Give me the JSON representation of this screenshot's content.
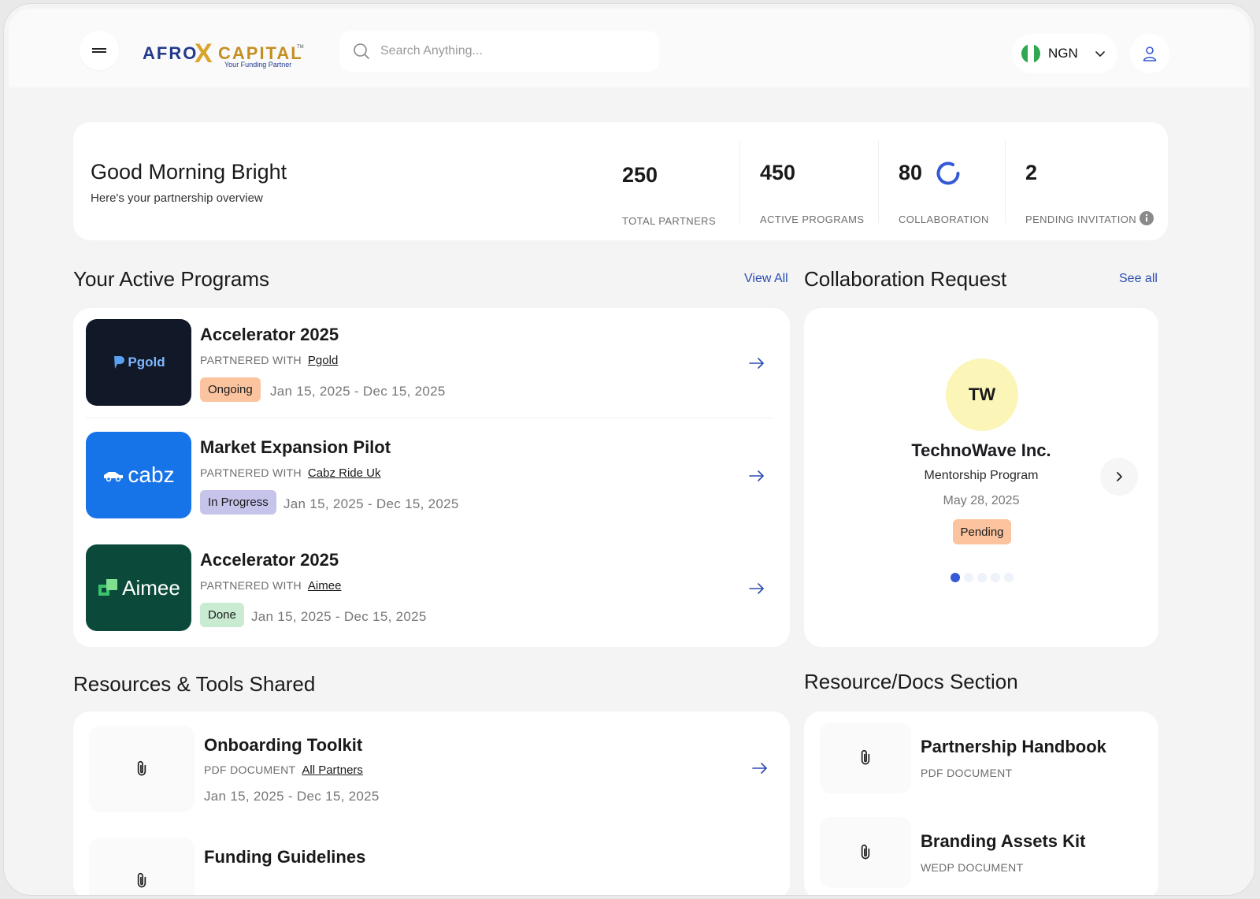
{
  "header": {
    "logo_text_1": "AFRO",
    "logo_text_x": "X",
    "logo_text_2": "CAPITAL",
    "logo_tm": "TM",
    "logo_tagline": "Your Funding Partner",
    "search_placeholder": "Search Anything...",
    "currency": "NGN"
  },
  "overview": {
    "greeting": "Good Morning Bright",
    "subtitle": "Here's your partnership overview",
    "stats": [
      {
        "value": "250",
        "label": "TOTAL PARTNERS"
      },
      {
        "value": "450",
        "label": "ACTIVE PROGRAMS"
      },
      {
        "value": "80",
        "label": "COLLABORATION"
      },
      {
        "value": "2",
        "label": "PENDING INVITATION"
      }
    ]
  },
  "programs": {
    "title": "Your Active Programs",
    "view_all": "View All",
    "partnered_label": "PARTNERED WITH",
    "items": [
      {
        "title": "Accelerator 2025",
        "partner": "Pgold",
        "logo_text": "Pgold",
        "status": "Ongoing",
        "dates": "Jan 15, 2025 - Dec 15, 2025"
      },
      {
        "title": "Market Expansion Pilot",
        "partner": "Cabz Ride Uk",
        "logo_text": "cabz",
        "status": "In Progress",
        "dates": "Jan 15, 2025 - Dec 15, 2025"
      },
      {
        "title": "Accelerator 2025",
        "partner": "Aimee",
        "logo_text": "Aimee",
        "status": "Done",
        "dates": "Jan 15, 2025 - Dec 15, 2025"
      }
    ],
    "colors": {
      "ongoing": "#fbc49e",
      "in_progress": "#c6c4ea",
      "done": "#c9ebd2"
    }
  },
  "collaboration": {
    "title": "Collaboration Request",
    "see_all": "See all",
    "initials": "TW",
    "company": "TechnoWave Inc.",
    "program": "Mentorship Program",
    "date": "May 28, 2025",
    "status": "Pending",
    "carousel_count": 5,
    "carousel_active": 1
  },
  "resources": {
    "title": "Resources & Tools Shared",
    "items": [
      {
        "title": "Onboarding Toolkit",
        "type": "PDF DOCUMENT",
        "audience": "All Partners",
        "dates": "Jan 15, 2025 - Dec 15, 2025"
      },
      {
        "title": "Funding Guidelines"
      }
    ]
  },
  "docs": {
    "title": "Resource/Docs Section",
    "items": [
      {
        "title": "Partnership Handbook",
        "type": "PDF DOCUMENT"
      },
      {
        "title": "Branding Assets Kit",
        "type": "WEDP DOCUMENT"
      }
    ]
  },
  "accent_color": "#2b4cb3"
}
